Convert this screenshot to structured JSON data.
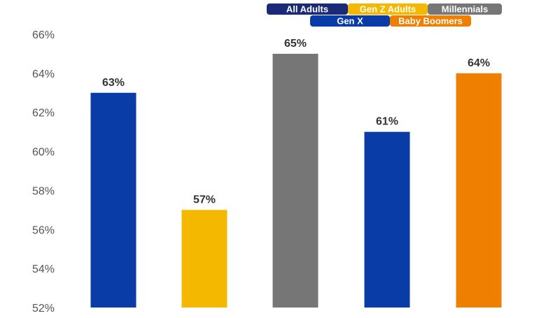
{
  "chart_data": {
    "type": "bar",
    "title": "",
    "xlabel": "",
    "ylabel": "",
    "ylim": [
      52,
      66
    ],
    "y_ticks": [
      52,
      54,
      56,
      58,
      60,
      62,
      64,
      66
    ],
    "y_tick_suffix": "%",
    "grid": false,
    "legend_position": "top-right",
    "categories": [
      "All Adults",
      "Gen Z Adults",
      "Millennials",
      "Gen X",
      "Baby Boomers"
    ],
    "values": [
      63,
      57,
      65,
      61,
      64
    ],
    "data_labels": [
      "63%",
      "57%",
      "65%",
      "61%",
      "64%"
    ],
    "colors": [
      "#0a3ca8",
      "#f5b800",
      "#767676",
      "#0a3ca8",
      "#ee7f00"
    ],
    "legend": [
      {
        "label": "All Adults",
        "color": "#1a2a78"
      },
      {
        "label": "Gen Z Adults",
        "color": "#f5b800"
      },
      {
        "label": "Millennials",
        "color": "#767676"
      },
      {
        "label": "Gen X",
        "color": "#0a3ca8"
      },
      {
        "label": "Baby Boomers",
        "color": "#ee7f00"
      }
    ]
  }
}
